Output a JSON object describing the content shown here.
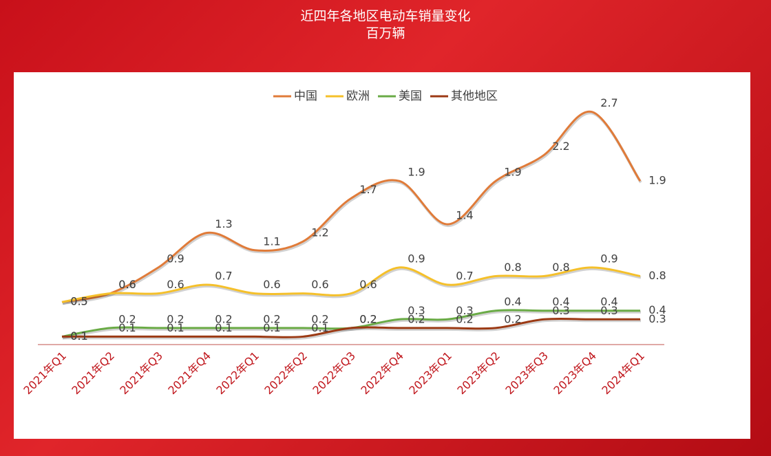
{
  "chart_data": {
    "type": "line",
    "title": "近四年各地区电动车销量变化",
    "subtitle": "百万辆",
    "categories": [
      "2021年Q1",
      "2021年Q2",
      "2021年Q3",
      "2021年Q4",
      "2022年Q1",
      "2022年Q2",
      "2022年Q3",
      "2022年Q4",
      "2023年Q1",
      "2023年Q2",
      "2023年Q3",
      "2023年Q4",
      "2024年Q1"
    ],
    "series": [
      {
        "name": "中国",
        "color": "#e07b39",
        "values": [
          0.5,
          0.6,
          0.9,
          1.3,
          1.1,
          1.2,
          1.7,
          1.9,
          1.4,
          1.9,
          2.2,
          2.7,
          1.9
        ]
      },
      {
        "name": "欧洲",
        "color": "#f5c02a",
        "values": [
          0.5,
          0.6,
          0.6,
          0.7,
          0.6,
          0.6,
          0.6,
          0.9,
          0.7,
          0.8,
          0.8,
          0.9,
          0.8
        ]
      },
      {
        "name": "美国",
        "color": "#6aab46",
        "values": [
          0.1,
          0.2,
          0.2,
          0.2,
          0.2,
          0.2,
          0.2,
          0.3,
          0.3,
          0.4,
          0.4,
          0.4,
          0.4
        ]
      },
      {
        "name": "其他地区",
        "color": "#9c3a14",
        "values": [
          0.1,
          0.1,
          0.1,
          0.1,
          0.1,
          0.1,
          0.2,
          0.2,
          0.2,
          0.2,
          0.3,
          0.3,
          0.3
        ]
      }
    ],
    "ylim": [
      0,
      3
    ],
    "legend": "top"
  }
}
